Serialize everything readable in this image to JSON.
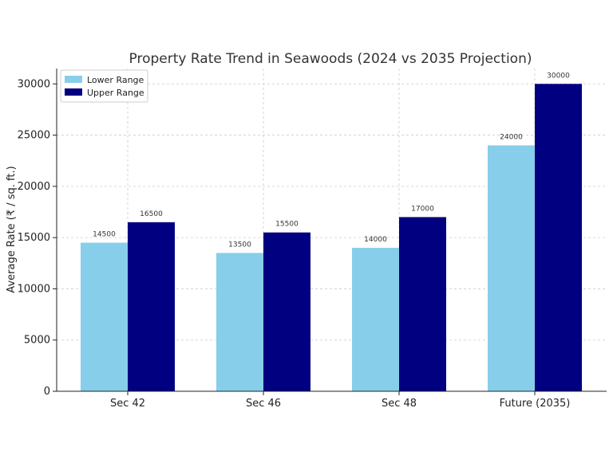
{
  "chart_data": {
    "type": "bar",
    "title": "Property Rate Trend in Seawoods (2024 vs 2035 Projection)",
    "xlabel": "",
    "ylabel": "Average Rate (₹ / sq. ft.)",
    "categories": [
      "Sec 42",
      "Sec 46",
      "Sec 48",
      "Future (2035)"
    ],
    "series": [
      {
        "name": "Lower Range",
        "values": [
          14500,
          13500,
          14000,
          24000
        ],
        "color": "#87ceeb"
      },
      {
        "name": "Upper Range",
        "values": [
          16500,
          15500,
          17000,
          30000
        ],
        "color": "#000080"
      }
    ],
    "yticks": [
      0,
      5000,
      10000,
      15000,
      20000,
      25000,
      30000
    ],
    "ylim": [
      0,
      31500
    ],
    "grid": true,
    "legend_position": "top-left"
  }
}
